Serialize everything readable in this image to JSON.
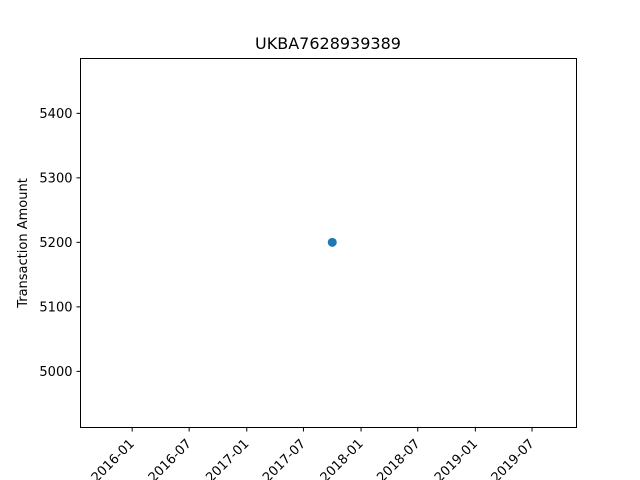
{
  "chart_data": {
    "type": "scatter",
    "title": "UKBA7628939389",
    "xlabel": "",
    "ylabel": "Transaction Amount",
    "x_type": "date",
    "xlim": [
      "2015-07-20",
      "2019-11-20"
    ],
    "ylim": [
      4913,
      5485
    ],
    "x_ticks": [
      "2016-01",
      "2016-07",
      "2017-01",
      "2017-07",
      "2018-01",
      "2018-07",
      "2019-01",
      "2019-07"
    ],
    "y_ticks": [
      5000,
      5100,
      5200,
      5300,
      5400
    ],
    "grid": false,
    "legend": false,
    "marker_color": "#1f77b4",
    "series": [
      {
        "x": [
          "2017-10-01"
        ],
        "y": [
          5200
        ]
      }
    ]
  }
}
